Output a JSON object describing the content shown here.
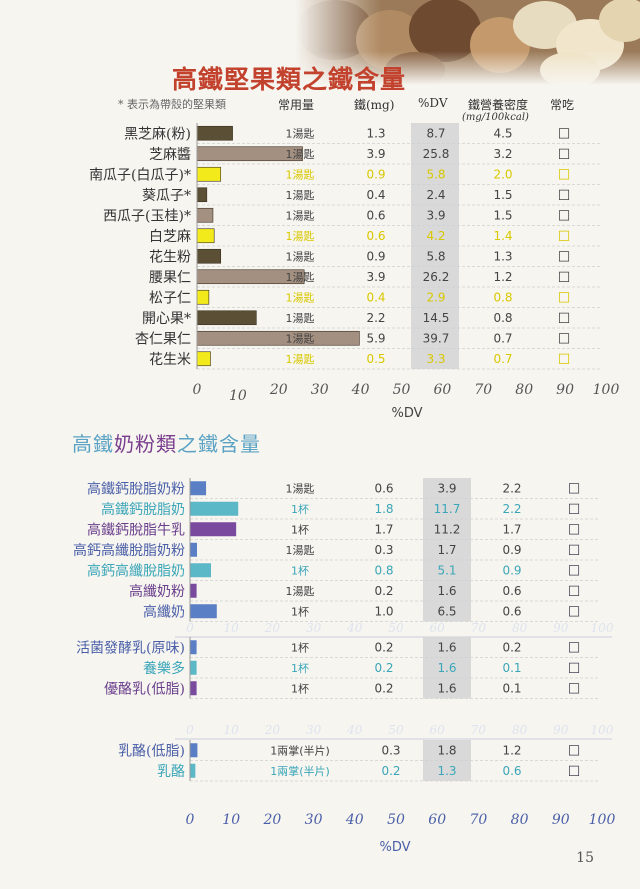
{
  "page_number": "15",
  "note": "* 表示為帶殼的堅果類",
  "columns": {
    "serving": "常用量",
    "iron": "鐵(mg)",
    "dv": "%DV",
    "density": "鐵營養密度",
    "density_unit": "(mg/100kcal)",
    "common": "常吃"
  },
  "checkbox_glyph": "☐",
  "colors": {
    "nut_title": "#c2422d",
    "milk_title": "#5aa3c4",
    "milk_title_highlight": "#7a3e8e",
    "dv_band": "#d9d9d9",
    "bar_dark": "#5b4f36",
    "bar_tan": "#a49080",
    "bar_yellow": "#f2ea1b",
    "bar_blue": "#5a7fc4",
    "bar_teal": "#5bb8c6",
    "bar_purple": "#7a4a9e",
    "label_dark": "#333333",
    "label_teal": "#3aa6b8",
    "label_blue": "#4a5fa8",
    "label_purple": "#6a3f8c"
  },
  "chart_data": [
    {
      "type": "bar",
      "orientation": "horizontal",
      "title": "高鐵堅果類之鐵含量",
      "xlabel": "%DV",
      "xlim": [
        0,
        100
      ],
      "x_ticks": [
        "0",
        "10",
        "20",
        "30",
        "40",
        "50",
        "60",
        "70",
        "80",
        "90",
        "100"
      ],
      "rows": [
        {
          "label": "黑芝麻(粉)",
          "serving": "1湯匙",
          "iron": "1.3",
          "dv": "8.7",
          "density": "4.5",
          "value": 8.7,
          "color": "bar_dark",
          "text": "dark"
        },
        {
          "label": "芝麻醬",
          "serving": "1湯匙",
          "iron": "3.9",
          "dv": "25.8",
          "density": "3.2",
          "value": 25.8,
          "color": "bar_tan",
          "text": "dark"
        },
        {
          "label": "南瓜子(白瓜子)*",
          "serving": "1湯匙",
          "iron": "0.9",
          "dv": "5.8",
          "density": "2.0",
          "value": 5.8,
          "color": "bar_yellow",
          "text": "yellow"
        },
        {
          "label": "葵瓜子*",
          "serving": "1湯匙",
          "iron": "0.4",
          "dv": "2.4",
          "density": "1.5",
          "value": 2.4,
          "color": "bar_dark",
          "text": "dark"
        },
        {
          "label": "西瓜子(玉桂)*",
          "serving": "1湯匙",
          "iron": "0.6",
          "dv": "3.9",
          "density": "1.5",
          "value": 3.9,
          "color": "bar_tan",
          "text": "dark"
        },
        {
          "label": "白芝麻",
          "serving": "1湯匙",
          "iron": "0.6",
          "dv": "4.2",
          "density": "1.4",
          "value": 4.2,
          "color": "bar_yellow",
          "text": "yellow"
        },
        {
          "label": "花生粉",
          "serving": "1湯匙",
          "iron": "0.9",
          "dv": "5.8",
          "density": "1.3",
          "value": 5.8,
          "color": "bar_dark",
          "text": "dark"
        },
        {
          "label": "腰果仁",
          "serving": "1湯匙",
          "iron": "3.9",
          "dv": "26.2",
          "density": "1.2",
          "value": 26.2,
          "color": "bar_tan",
          "text": "dark"
        },
        {
          "label": "松子仁",
          "serving": "1湯匙",
          "iron": "0.4",
          "dv": "2.9",
          "density": "0.8",
          "value": 2.9,
          "color": "bar_yellow",
          "text": "yellow"
        },
        {
          "label": "開心果*",
          "serving": "1湯匙",
          "iron": "2.2",
          "dv": "14.5",
          "density": "0.8",
          "value": 14.5,
          "color": "bar_dark",
          "text": "dark"
        },
        {
          "label": "杏仁果仁",
          "serving": "1湯匙",
          "iron": "5.9",
          "dv": "39.7",
          "density": "0.7",
          "value": 39.7,
          "color": "bar_tan",
          "text": "dark"
        },
        {
          "label": "花生米",
          "serving": "1湯匙",
          "iron": "0.5",
          "dv": "3.3",
          "density": "0.7",
          "value": 3.3,
          "color": "bar_yellow",
          "text": "yellow"
        }
      ]
    },
    {
      "type": "bar",
      "orientation": "horizontal",
      "title": "高鐵奶粉類之鐵含量",
      "xlabel": "%DV",
      "xlim": [
        0,
        100
      ],
      "x_ticks": [
        "0",
        "10",
        "20",
        "30",
        "40",
        "50",
        "60",
        "70",
        "80",
        "90",
        "100"
      ],
      "groups": [
        {
          "rows": [
            {
              "label": "高鐵鈣脫脂奶粉",
              "serving": "1湯匙",
              "iron": "0.6",
              "dv": "3.9",
              "density": "2.2",
              "value": 3.9,
              "color": "bar_blue",
              "text": "blue"
            },
            {
              "label": "高鐵鈣脫脂奶",
              "serving": "1杯",
              "iron": "1.8",
              "dv": "11.7",
              "density": "2.2",
              "value": 11.7,
              "color": "bar_teal",
              "text": "teal"
            },
            {
              "label": "高鐵鈣脫脂牛乳",
              "serving": "1杯",
              "iron": "1.7",
              "dv": "11.2",
              "density": "1.7",
              "value": 11.2,
              "color": "bar_purple",
              "text": "purple"
            },
            {
              "label": "高鈣高纖脫脂奶粉",
              "serving": "1湯匙",
              "iron": "0.3",
              "dv": "1.7",
              "density": "0.9",
              "value": 1.7,
              "color": "bar_blue",
              "text": "blue"
            },
            {
              "label": "高鈣高纖脫脂奶",
              "serving": "1杯",
              "iron": "0.8",
              "dv": "5.1",
              "density": "0.9",
              "value": 5.1,
              "color": "bar_teal",
              "text": "teal"
            },
            {
              "label": "高纖奶粉",
              "serving": "1湯匙",
              "iron": "0.2",
              "dv": "1.6",
              "density": "0.6",
              "value": 1.6,
              "color": "bar_purple",
              "text": "purple"
            },
            {
              "label": "高纖奶",
              "serving": "1杯",
              "iron": "1.0",
              "dv": "6.5",
              "density": "0.6",
              "value": 6.5,
              "color": "bar_blue",
              "text": "blue"
            }
          ]
        },
        {
          "rows": [
            {
              "label": "活菌發酵乳(原味)",
              "serving": "1杯",
              "iron": "0.2",
              "dv": "1.6",
              "density": "0.2",
              "value": 1.6,
              "color": "bar_blue",
              "text": "blue"
            },
            {
              "label": "養樂多",
              "serving": "1杯",
              "iron": "0.2",
              "dv": "1.6",
              "density": "0.1",
              "value": 1.6,
              "color": "bar_teal",
              "text": "teal"
            },
            {
              "label": "優酪乳(低脂)",
              "serving": "1杯",
              "iron": "0.2",
              "dv": "1.6",
              "density": "0.1",
              "value": 1.6,
              "color": "bar_purple",
              "text": "purple"
            }
          ]
        },
        {
          "rows": [
            {
              "label": "乳酪(低脂)",
              "serving": "1兩掌(半片)",
              "iron": "0.3",
              "dv": "1.8",
              "density": "1.2",
              "value": 1.8,
              "color": "bar_blue",
              "text": "blue"
            },
            {
              "label": "乳酪",
              "serving": "1兩掌(半片)",
              "iron": "0.2",
              "dv": "1.3",
              "density": "0.6",
              "value": 1.3,
              "color": "bar_teal",
              "text": "teal"
            }
          ]
        }
      ]
    }
  ]
}
